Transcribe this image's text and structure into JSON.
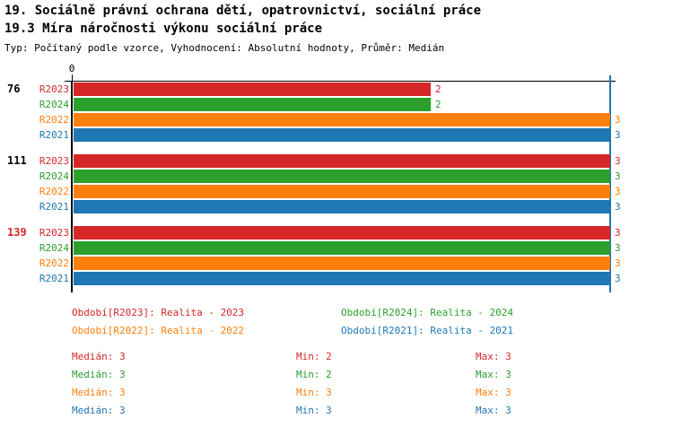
{
  "header": {
    "title": "19. Sociálně právní ochrana dětí, opatrovnictví, sociální práce",
    "subtitle": "19.3 Míra náročnosti výkonu sociální práce",
    "meta": "Typ: Počítaný podle vzorce, Vyhodnocení: Absolutní hodnoty, Průměr: Medián"
  },
  "colors": {
    "axis": "#000000",
    "median_line": "#1f77b4",
    "group_label_default": "#000000",
    "group_label_highlight": "#d62728"
  },
  "series_colors": {
    "R2023": "#d62728",
    "R2024": "#2ca02c",
    "R2022": "#ff7f0e",
    "R2021": "#1f77b4"
  },
  "chart_data": {
    "type": "bar",
    "orientation": "horizontal",
    "axis_origin_label": "0",
    "xlim": [
      0,
      3
    ],
    "grid": false,
    "reference_line": {
      "value": 3,
      "label": "Medián",
      "color": "#1f77b4"
    },
    "series_order": [
      "R2023",
      "R2024",
      "R2022",
      "R2021"
    ],
    "groups": [
      {
        "label": "76",
        "highlighted": false,
        "bars": [
          {
            "series": "R2023",
            "value": 2
          },
          {
            "series": "R2024",
            "value": 2
          },
          {
            "series": "R2022",
            "value": 3
          },
          {
            "series": "R2021",
            "value": 3
          }
        ]
      },
      {
        "label": "111",
        "highlighted": false,
        "bars": [
          {
            "series": "R2023",
            "value": 3
          },
          {
            "series": "R2024",
            "value": 3
          },
          {
            "series": "R2022",
            "value": 3
          },
          {
            "series": "R2021",
            "value": 3
          }
        ]
      },
      {
        "label": "139",
        "highlighted": true,
        "bars": [
          {
            "series": "R2023",
            "value": 3
          },
          {
            "series": "R2024",
            "value": 3
          },
          {
            "series": "R2022",
            "value": 3
          },
          {
            "series": "R2021",
            "value": 3
          }
        ]
      }
    ]
  },
  "legend": {
    "items": [
      {
        "series": "R2023",
        "label": "Období[R2023]: Realita - 2023"
      },
      {
        "series": "R2024",
        "label": "Období[R2024]: Realita - 2024"
      },
      {
        "series": "R2022",
        "label": "Období[R2022]: Realita - 2022"
      },
      {
        "series": "R2021",
        "label": "Období[R2021]: Realita - 2021"
      }
    ]
  },
  "stats": {
    "rows": [
      {
        "series": "R2023",
        "median": "Medián: 3",
        "min": "Min: 2",
        "max": "Max: 3"
      },
      {
        "series": "R2024",
        "median": "Medián: 3",
        "min": "Min: 2",
        "max": "Max: 3"
      },
      {
        "series": "R2022",
        "median": "Medián: 3",
        "min": "Min: 3",
        "max": "Max: 3"
      },
      {
        "series": "R2021",
        "median": "Medián: 3",
        "min": "Min: 3",
        "max": "Max: 3"
      }
    ]
  }
}
